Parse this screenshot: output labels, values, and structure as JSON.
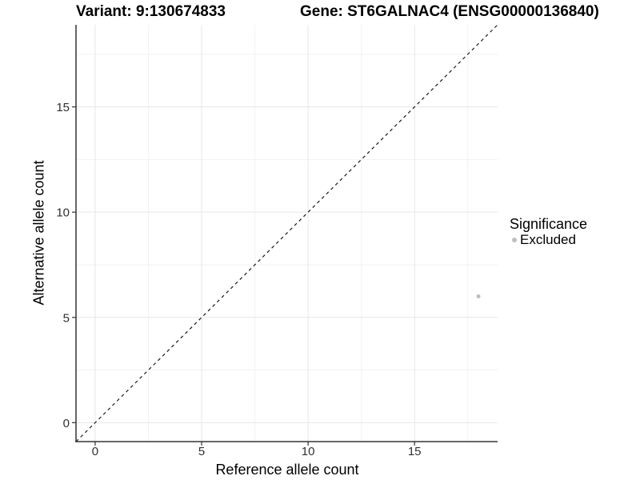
{
  "titles": {
    "variant": "Variant: 9:130674833",
    "gene": "Gene: ST6GALNAC4 (ENSG00000136840)"
  },
  "chart_data": {
    "type": "scatter",
    "title_left": "Variant: 9:130674833",
    "title_right": "Gene: ST6GALNAC4 (ENSG00000136840)",
    "xlabel": "Reference allele count",
    "ylabel": "Alternative allele count",
    "xlim": [
      -0.9,
      18.9
    ],
    "ylim": [
      -0.9,
      18.9
    ],
    "x_major_ticks": [
      0,
      5,
      10,
      15
    ],
    "y_major_ticks": [
      0,
      5,
      10,
      15
    ],
    "x_minor_ticks": [
      2.5,
      7.5,
      12.5,
      17.5
    ],
    "y_minor_ticks": [
      2.5,
      7.5,
      12.5,
      17.5
    ],
    "grid": true,
    "identity_line": {
      "style": "dashed",
      "equation": "y = x",
      "from": [
        -0.9,
        -0.9
      ],
      "to": [
        18.9,
        18.9
      ]
    },
    "series": [
      {
        "name": "Excluded",
        "marker": "circle",
        "color": "#BEBEBE",
        "points": [
          {
            "x": 18,
            "y": 6
          }
        ]
      }
    ],
    "legend": {
      "title": "Significance",
      "position": "right",
      "items": [
        {
          "label": "Excluded",
          "color": "#BEBEBE",
          "marker": "circle"
        }
      ]
    }
  },
  "colors": {
    "background": "#FFFFFF",
    "point": "#BEBEBE",
    "axis_line": "#333333",
    "tick_label": "#303030",
    "grid_major": "#E7E7E7",
    "grid_minor": "#F2F2F2",
    "identity_line": "#1A1A1A",
    "text": "#000000"
  }
}
